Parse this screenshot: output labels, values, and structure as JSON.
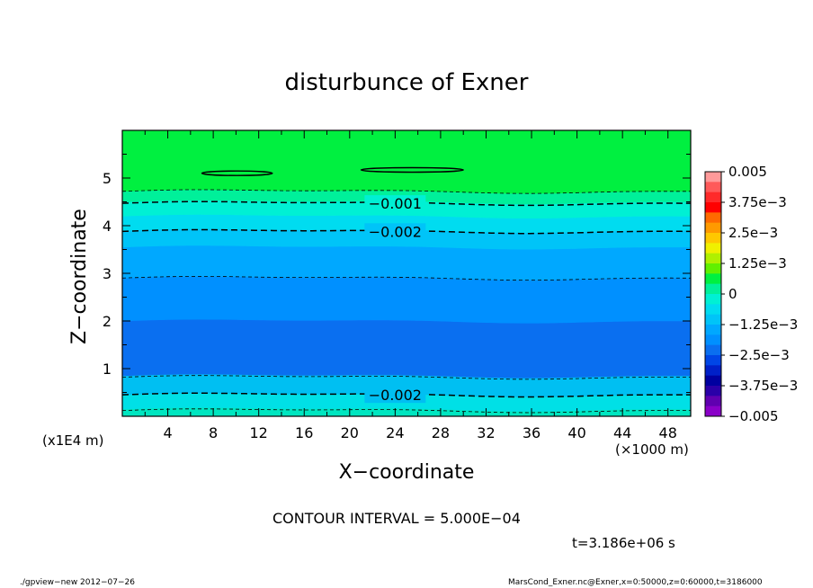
{
  "title": "disturbunce of Exner",
  "x_axis_label": "X−coordinate",
  "y_axis_label": "Z−coordinate",
  "x_unit": "(×1000 m)",
  "z_unit": "(x1E4 m)",
  "contour_interval_text": "CONTOUR INTERVAL = 5.000E−04",
  "time_text": "t=3.186e+06 s",
  "footer_left": "./gpview−new   2012−07−26",
  "footer_right": "MarsCond_Exner.nc@Exner,x=0:50000,z=0:60000,t=3186000",
  "chart_data": {
    "type": "contour",
    "title": "disturbunce of Exner",
    "xlabel": "X−coordinate",
    "ylabel": "Z−coordinate",
    "xlim": [
      0,
      50
    ],
    "ylim": [
      0,
      6
    ],
    "x_ticks": [
      4,
      8,
      12,
      16,
      20,
      24,
      28,
      32,
      36,
      40,
      44,
      48
    ],
    "y_ticks": [
      1,
      2,
      3,
      4,
      5
    ],
    "contour_interval": 0.0005,
    "fill_bands_bottom_to_top": [
      {
        "z_from": 0.0,
        "z_to": 0.15,
        "color": "#00e6c0"
      },
      {
        "z_from": 0.15,
        "z_to": 0.45,
        "color": "#00e0e6"
      },
      {
        "z_from": 0.45,
        "z_to": 0.85,
        "color": "#00bff2"
      },
      {
        "z_from": 0.85,
        "z_to": 2.0,
        "color": "#0a6ff0"
      },
      {
        "z_from": 2.0,
        "z_to": 2.9,
        "color": "#0090ff"
      },
      {
        "z_from": 2.9,
        "z_to": 3.55,
        "color": "#00a8ff"
      },
      {
        "z_from": 3.55,
        "z_to": 3.9,
        "color": "#00c4f8"
      },
      {
        "z_from": 3.9,
        "z_to": 4.2,
        "color": "#00dcf0"
      },
      {
        "z_from": 4.2,
        "z_to": 4.5,
        "color": "#00f0d4"
      },
      {
        "z_from": 4.5,
        "z_to": 4.72,
        "color": "#00f09a"
      },
      {
        "z_from": 4.72,
        "z_to": 6.0,
        "color": "#00f040"
      }
    ],
    "contour_lines": [
      {
        "z": 0.12,
        "style": "dashed",
        "label": ""
      },
      {
        "z": 0.45,
        "style": "dashed",
        "label": "−0.002",
        "label_x": 24
      },
      {
        "z": 0.82,
        "style": "dashed",
        "label": ""
      },
      {
        "z": 2.9,
        "style": "dashed",
        "label": ""
      },
      {
        "z": 3.88,
        "style": "dashed",
        "label": "−0.002",
        "label_x": 24
      },
      {
        "z": 4.47,
        "style": "dashed",
        "label": "−0.001",
        "label_x": 24
      },
      {
        "z": 4.72,
        "style": "dashed",
        "label": ""
      }
    ],
    "closed_contours": [
      {
        "x_from": 7.0,
        "x_to": 13.2,
        "z": 5.1
      },
      {
        "x_from": 21.0,
        "x_to": 30.0,
        "z": 5.17
      }
    ],
    "colorbar": {
      "min": -0.005,
      "max": 0.005,
      "labels": [
        "0.005",
        "3.75e−3",
        "2.5e−3",
        "1.25e−3",
        "0",
        "−1.25e−3",
        "−2.5e−3",
        "−3.75e−3",
        "−0.005"
      ],
      "colors_top_to_bottom": [
        "#ff9a9a",
        "#ff5a5a",
        "#ff2a2a",
        "#ff0000",
        "#ff6a00",
        "#ff9a00",
        "#ffc800",
        "#f0f000",
        "#b0f000",
        "#60f000",
        "#00f040",
        "#00f09a",
        "#00f0d4",
        "#00dcf0",
        "#00c4f8",
        "#00a8ff",
        "#0090ff",
        "#0a6ff0",
        "#0046e6",
        "#0020c8",
        "#0000a0",
        "#2a00a8",
        "#6000b0",
        "#8a00c8"
      ]
    }
  }
}
